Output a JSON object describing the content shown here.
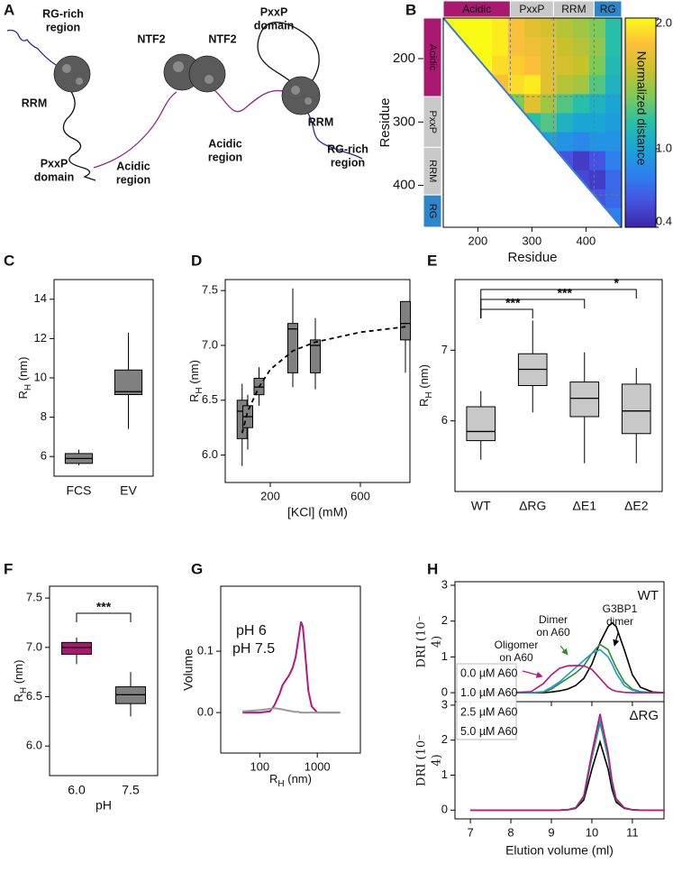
{
  "chart_data": [
    {
      "panel": "A",
      "type": "diagram",
      "labels": [
        {
          "lines": [
            "RG-rich",
            "region"
          ],
          "color": "#2a8fd4"
        },
        {
          "lines": [
            "RRM"
          ],
          "color": "#111111"
        },
        {
          "lines": [
            "PxxP",
            "domain"
          ],
          "color": "#111111"
        },
        {
          "lines": [
            "Acidic",
            "region"
          ],
          "color": "#a8196f"
        },
        {
          "lines": [
            "NTF2"
          ],
          "color": "#111111"
        },
        {
          "lines": [
            "NTF2"
          ],
          "color": "#111111"
        },
        {
          "lines": [
            "Acidic",
            "region"
          ],
          "color": "#a8196f"
        },
        {
          "lines": [
            "PxxP",
            "domain"
          ],
          "color": "#111111"
        },
        {
          "lines": [
            "RRM"
          ],
          "color": "#111111"
        },
        {
          "lines": [
            "RG-rich",
            "region"
          ],
          "color": "#2a8fd4"
        }
      ]
    },
    {
      "panel": "B",
      "type": "heatmap",
      "xlabel": "Residue",
      "ylabel": "Residue",
      "xlim": [
        136,
        466
      ],
      "ylim": [
        136,
        466
      ],
      "xticks": [
        200,
        300,
        400
      ],
      "yticks": [
        200,
        300,
        400
      ],
      "x_edges": [
        136,
        166,
        196,
        226,
        256,
        286,
        316,
        346,
        376,
        406,
        436,
        466
      ],
      "values": [
        [
          2.0,
          2.0,
          2.0,
          1.95,
          1.8,
          1.7,
          1.65,
          1.55,
          1.5,
          1.4,
          1.2
        ],
        [
          null,
          2.0,
          2.0,
          1.95,
          1.8,
          1.75,
          1.7,
          1.6,
          1.55,
          1.45,
          1.2
        ],
        [
          null,
          null,
          2.0,
          1.9,
          1.85,
          1.8,
          1.7,
          1.65,
          1.6,
          1.4,
          1.15
        ],
        [
          null,
          null,
          null,
          1.8,
          1.9,
          1.95,
          1.7,
          1.55,
          1.5,
          1.3,
          1.1
        ],
        [
          null,
          null,
          null,
          null,
          1.4,
          1.7,
          1.5,
          1.3,
          1.2,
          1.1,
          1.0
        ],
        [
          null,
          null,
          null,
          null,
          null,
          1.2,
          1.3,
          1.1,
          1.0,
          1.0,
          0.95
        ],
        [
          null,
          null,
          null,
          null,
          null,
          null,
          1.0,
          0.9,
          0.85,
          0.9,
          0.9
        ],
        [
          null,
          null,
          null,
          null,
          null,
          null,
          null,
          0.6,
          0.5,
          0.6,
          0.8
        ],
        [
          null,
          null,
          null,
          null,
          null,
          null,
          null,
          null,
          0.55,
          0.5,
          0.7
        ],
        [
          null,
          null,
          null,
          null,
          null,
          null,
          null,
          null,
          null,
          0.6,
          0.7
        ],
        [
          null,
          null,
          null,
          null,
          null,
          null,
          null,
          null,
          null,
          null,
          0.8
        ]
      ],
      "clim": [
        0.4,
        2.0
      ],
      "colorbar_ticks": [
        {
          "value": 2.0,
          "label": "2.0"
        },
        {
          "value": 1.0,
          "label": "1.0"
        },
        {
          "value": 0.4,
          "label": "0.4"
        }
      ],
      "colorbar_label": "Normalized distance",
      "colormap": [
        "#3e26a8",
        "#4653e0",
        "#2c80f0",
        "#1aa5d5",
        "#28bfa8",
        "#7ec95a",
        "#c8c22a",
        "#fcbf39",
        "#f9fb14"
      ],
      "domains": [
        {
          "name": "Acidic",
          "start": 136,
          "end": 260,
          "color": "#a8196f"
        },
        {
          "name": "PxxP",
          "start": 260,
          "end": 340,
          "color": "#c8c8c8"
        },
        {
          "name": "RRM",
          "start": 340,
          "end": 415,
          "color": "#c8c8c8"
        },
        {
          "name": "RG",
          "start": 415,
          "end": 466,
          "color": "#2e86c8"
        }
      ]
    },
    {
      "panel": "C",
      "type": "box",
      "categories": [
        "FCS",
        "EV"
      ],
      "ylabel": {
        "text": "R",
        "sub": "H",
        "rest": " (nm)"
      },
      "ylim": [
        5,
        15
      ],
      "yticks": [
        6,
        8,
        10,
        12,
        14
      ],
      "color": "#808080",
      "boxes": [
        {
          "whislo": 5.55,
          "q1": 5.65,
          "med": 5.9,
          "q3": 6.15,
          "whishi": 6.35
        },
        {
          "whislo": 7.4,
          "q1": 9.15,
          "med": 9.3,
          "q3": 10.4,
          "whishi": 12.3
        }
      ]
    },
    {
      "panel": "D",
      "type": "box",
      "x": [
        75,
        100,
        150,
        300,
        400,
        800
      ],
      "xlim": [
        0,
        820
      ],
      "xticks": [
        200,
        600
      ],
      "xlabel": "[KCl] (mM)",
      "ylabel": {
        "text": "R",
        "sub": "H",
        "rest": " (nm)"
      },
      "ylim": [
        5.75,
        7.6
      ],
      "yticks": [
        {
          "value": 6.0,
          "label": "6.0"
        },
        {
          "value": 6.5,
          "label": "6.5"
        },
        {
          "value": 7.0,
          "label": "7.0"
        },
        {
          "value": 7.5,
          "label": "7.5"
        }
      ],
      "color": "#808080",
      "boxes": [
        {
          "whislo": 5.9,
          "q1": 6.15,
          "med": 6.4,
          "q3": 6.5,
          "whishi": 6.65
        },
        {
          "whislo": 6.05,
          "q1": 6.25,
          "med": 6.35,
          "q3": 6.45,
          "whishi": 6.55
        },
        {
          "whislo": 6.45,
          "q1": 6.55,
          "med": 6.62,
          "q3": 6.7,
          "whishi": 6.8
        },
        {
          "whislo": 6.62,
          "q1": 6.75,
          "med": 7.15,
          "q3": 7.2,
          "whishi": 7.52
        },
        {
          "whislo": 6.6,
          "q1": 6.75,
          "med": 7.0,
          "q3": 7.05,
          "whishi": 7.25
        },
        {
          "whislo": 6.75,
          "q1": 7.05,
          "med": 7.2,
          "q3": 7.4,
          "whishi": 7.4
        }
      ],
      "fit": {
        "x": [
          75,
          100,
          150,
          200,
          300,
          400,
          600,
          800
        ],
        "y": [
          6.2,
          6.4,
          6.62,
          6.78,
          6.95,
          7.03,
          7.12,
          7.17
        ]
      }
    },
    {
      "panel": "E",
      "type": "box",
      "categories": [
        "WT",
        "ΔRG",
        "ΔE1",
        "ΔE2"
      ],
      "ylabel": {
        "text": "R",
        "sub": "H",
        "rest": " (nm)"
      },
      "ylim": [
        5,
        8
      ],
      "yticks": [
        6,
        7
      ],
      "color": "#c8c8c8",
      "boxes": [
        {
          "whislo": 5.45,
          "q1": 5.72,
          "med": 5.85,
          "q3": 6.2,
          "whishi": 6.42
        },
        {
          "whislo": 6.12,
          "q1": 6.5,
          "med": 6.73,
          "q3": 6.95,
          "whishi": 7.42
        },
        {
          "whislo": 5.4,
          "q1": 6.06,
          "med": 6.32,
          "q3": 6.55,
          "whishi": 6.97
        },
        {
          "whislo": 5.4,
          "q1": 5.82,
          "med": 6.14,
          "q3": 6.52,
          "whishi": 6.75
        }
      ],
      "brackets": [
        {
          "from": 0,
          "to": 1,
          "label": "***"
        },
        {
          "from": 0,
          "to": 2,
          "label": "***"
        },
        {
          "from": 0,
          "to": 3,
          "label": "*"
        }
      ]
    },
    {
      "panel": "F",
      "type": "box",
      "categories": [
        "6.0",
        "7.5"
      ],
      "xlabel": "pH",
      "ylabel": {
        "text": "R",
        "sub": "H",
        "rest": " (nm)"
      },
      "ylim": [
        5.7,
        7.62
      ],
      "yticks": [
        {
          "value": 6.0,
          "label": "6.0"
        },
        {
          "value": 6.5,
          "label": "6.5"
        },
        {
          "value": 7.0,
          "label": "7.0"
        },
        {
          "value": 7.5,
          "label": "7.5"
        }
      ],
      "colors": [
        "#a8196f",
        "#808080"
      ],
      "boxes": [
        {
          "whislo": 6.83,
          "q1": 6.93,
          "med": 7.0,
          "q3": 7.05,
          "whishi": 7.1
        },
        {
          "whislo": 6.3,
          "q1": 6.43,
          "med": 6.52,
          "q3": 6.6,
          "whishi": 6.75
        }
      ],
      "brackets": [
        {
          "from": 0,
          "to": 1,
          "label": "***"
        }
      ]
    },
    {
      "panel": "G",
      "type": "line",
      "xlog": true,
      "xlim": [
        21,
        5600
      ],
      "xticks": [
        100,
        1000
      ],
      "ylim": [
        -0.066,
        0.206
      ],
      "yticks": [
        {
          "value": 0,
          "label": "0.0"
        },
        {
          "value": 0.1,
          "label": "0.1"
        }
      ],
      "xlabel": {
        "text": "R",
        "sub": "H",
        "rest": " (nm)"
      },
      "ylabel": "Volume",
      "x": [
        50,
        100,
        150,
        180,
        220,
        250,
        280,
        320,
        370,
        420,
        470,
        520,
        560,
        600,
        650,
        700,
        800,
        1000,
        2000,
        2500
      ],
      "series": [
        {
          "name": "pH 6",
          "color": "#b5177b",
          "values": [
            0,
            0,
            0.002,
            0.012,
            0.03,
            0.045,
            0.052,
            0.06,
            0.072,
            0.09,
            0.12,
            0.148,
            0.14,
            0.11,
            0.07,
            0.035,
            0.01,
            0,
            0,
            0
          ]
        },
        {
          "name": "pH 7.5",
          "color": "#999999",
          "values": [
            0.002,
            0.004,
            0.006,
            0.007,
            0.006,
            0.005,
            0.004,
            0.003,
            0.002,
            0.001,
            0.001,
            0,
            0,
            0,
            0,
            0,
            0,
            0,
            0,
            0
          ]
        }
      ]
    },
    {
      "panel": "H",
      "type": "line",
      "xlim": [
        6.62,
        11.78
      ],
      "xticks": [
        7,
        8,
        9,
        10,
        11
      ],
      "xlabel": "Elution volume (ml)",
      "ylabel": [
        "DRI (10⁻",
        "4)"
      ],
      "ylim": [
        -0.25,
        3.1
      ],
      "yticks": [
        0,
        1,
        2,
        3
      ],
      "x": [
        7,
        8,
        8.5,
        8.8,
        9.0,
        9.2,
        9.4,
        9.6,
        9.8,
        10.0,
        10.2,
        10.4,
        10.5,
        10.6,
        10.8,
        11.0,
        11.2,
        11.5,
        11.8
      ],
      "legend": [
        {
          "name": "0.0 µM A60",
          "color": "#000000"
        },
        {
          "name": "1.0 µM A60",
          "color": "#2e8b2e"
        },
        {
          "name": "2.5 µM A60",
          "color": "#1a9ad6"
        },
        {
          "name": "5.0 µM A60",
          "color": "#b5177b"
        }
      ],
      "subplots": [
        {
          "label": "WT",
          "series": [
            {
              "values": [
                0,
                0,
                0,
                0,
                0.02,
                0.05,
                0.1,
                0.2,
                0.4,
                0.8,
                1.4,
                1.85,
                1.95,
                1.85,
                1.2,
                0.5,
                0.15,
                0.02,
                0
              ]
            },
            {
              "values": [
                0,
                0,
                0,
                0.02,
                0.1,
                0.25,
                0.4,
                0.55,
                0.75,
                1.1,
                1.35,
                1.2,
                0.95,
                0.7,
                0.3,
                0.1,
                0.03,
                0,
                0
              ]
            },
            {
              "values": [
                0,
                0,
                0,
                0.03,
                0.15,
                0.3,
                0.5,
                0.7,
                0.9,
                1.1,
                1.2,
                1.0,
                0.8,
                0.55,
                0.2,
                0.07,
                0.02,
                0,
                0
              ]
            },
            {
              "values": [
                0,
                0,
                0.03,
                0.25,
                0.5,
                0.68,
                0.75,
                0.76,
                0.75,
                0.65,
                0.4,
                0.15,
                0.08,
                0.04,
                0.01,
                0,
                0,
                0,
                0
              ]
            }
          ]
        },
        {
          "label": "ΔRG",
          "series": [
            {
              "values": [
                0,
                0,
                0,
                0,
                0,
                0,
                0.01,
                0.05,
                0.29,
                1.17,
                1.95,
                1.17,
                0.59,
                0.23,
                0.05,
                0.01,
                0,
                0,
                0
              ]
            },
            {
              "values": [
                0,
                0,
                0,
                0,
                0,
                0,
                0.01,
                0.06,
                0.38,
                1.5,
                2.5,
                1.5,
                0.75,
                0.3,
                0.06,
                0.01,
                0,
                0,
                0
              ]
            },
            {
              "values": [
                0,
                0,
                0,
                0,
                0,
                0,
                0.01,
                0.07,
                0.39,
                1.56,
                2.6,
                1.56,
                0.78,
                0.31,
                0.07,
                0.01,
                0,
                0,
                0
              ]
            },
            {
              "values": [
                0,
                0,
                0,
                0,
                0,
                0,
                0.01,
                0.07,
                0.41,
                1.65,
                2.75,
                1.65,
                0.83,
                0.33,
                0.07,
                0.01,
                0,
                0,
                0
              ]
            }
          ]
        }
      ],
      "annotations": [
        {
          "lines": [
            "G3BP1",
            "dimer"
          ],
          "color": "#000000"
        },
        {
          "lines": [
            "Dimer",
            "on A60"
          ],
          "color": "#2e8b2e"
        },
        {
          "lines": [
            "Oligomer",
            "on A60"
          ],
          "color": "#b5177b"
        }
      ]
    }
  ]
}
